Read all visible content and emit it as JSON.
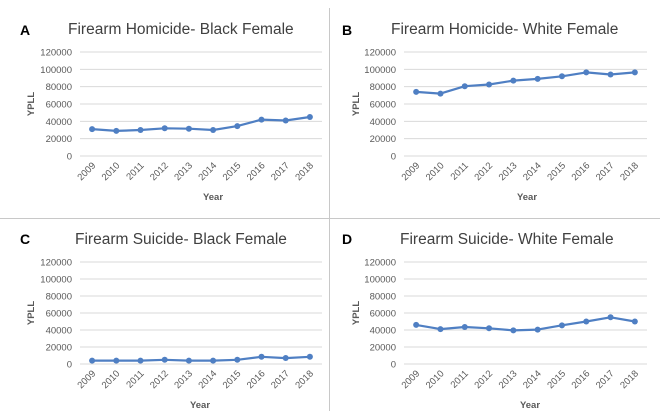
{
  "colors": {
    "line": "#4f7fc3",
    "grid": "#d9d9d9",
    "text": "#595959",
    "title": "#404040"
  },
  "chart_data": [
    {
      "panel": "A",
      "type": "line",
      "title": "Firearm Homicide- Black Female",
      "xlabel": "Year",
      "ylabel": "YPLL",
      "ylim": [
        0,
        120000
      ],
      "yticks": [
        "0",
        "20000",
        "40000",
        "60000",
        "80000",
        "100000",
        "120000"
      ],
      "categories": [
        "2009",
        "2010",
        "2011",
        "2012",
        "2013",
        "2014",
        "2015",
        "2016",
        "2017",
        "2018"
      ],
      "values": [
        31000,
        29000,
        30000,
        32000,
        31500,
        30000,
        34500,
        42000,
        41000,
        45000
      ],
      "grid": true
    },
    {
      "panel": "B",
      "type": "line",
      "title": "Firearm Homicide- White Female",
      "xlabel": "Year",
      "ylabel": "YPLL",
      "ylim": [
        0,
        120000
      ],
      "yticks": [
        "0",
        "20000",
        "40000",
        "60000",
        "80000",
        "100000",
        "120000"
      ],
      "categories": [
        "2009",
        "2010",
        "2011",
        "2012",
        "2013",
        "2014",
        "2015",
        "2016",
        "2017",
        "2018"
      ],
      "values": [
        74000,
        72000,
        80500,
        82500,
        87000,
        89000,
        92000,
        96500,
        94000,
        96500
      ],
      "grid": true
    },
    {
      "panel": "C",
      "type": "line",
      "title": "Firearm Suicide- Black Female",
      "xlabel": "Year",
      "ylabel": "YPLL",
      "ylim": [
        0,
        120000
      ],
      "yticks": [
        "0",
        "20000",
        "40000",
        "60000",
        "80000",
        "100000",
        "120000"
      ],
      "categories": [
        "2009",
        "2010",
        "2011",
        "2012",
        "2013",
        "2014",
        "2015",
        "2016",
        "2017",
        "2018"
      ],
      "values": [
        4000,
        4000,
        4000,
        5000,
        4000,
        4000,
        5000,
        8500,
        7000,
        8500
      ],
      "grid": true
    },
    {
      "panel": "D",
      "type": "line",
      "title": "Firearm Suicide- White Female",
      "xlabel": "Year",
      "ylabel": "YPLL",
      "ylim": [
        0,
        120000
      ],
      "yticks": [
        "0",
        "20000",
        "40000",
        "60000",
        "80000",
        "100000",
        "120000"
      ],
      "categories": [
        "2009",
        "2010",
        "2011",
        "2012",
        "2013",
        "2014",
        "2015",
        "2016",
        "2017",
        "2018"
      ],
      "values": [
        46000,
        41000,
        43500,
        42000,
        39500,
        40500,
        45500,
        50000,
        55000,
        50000
      ],
      "grid": true
    }
  ]
}
